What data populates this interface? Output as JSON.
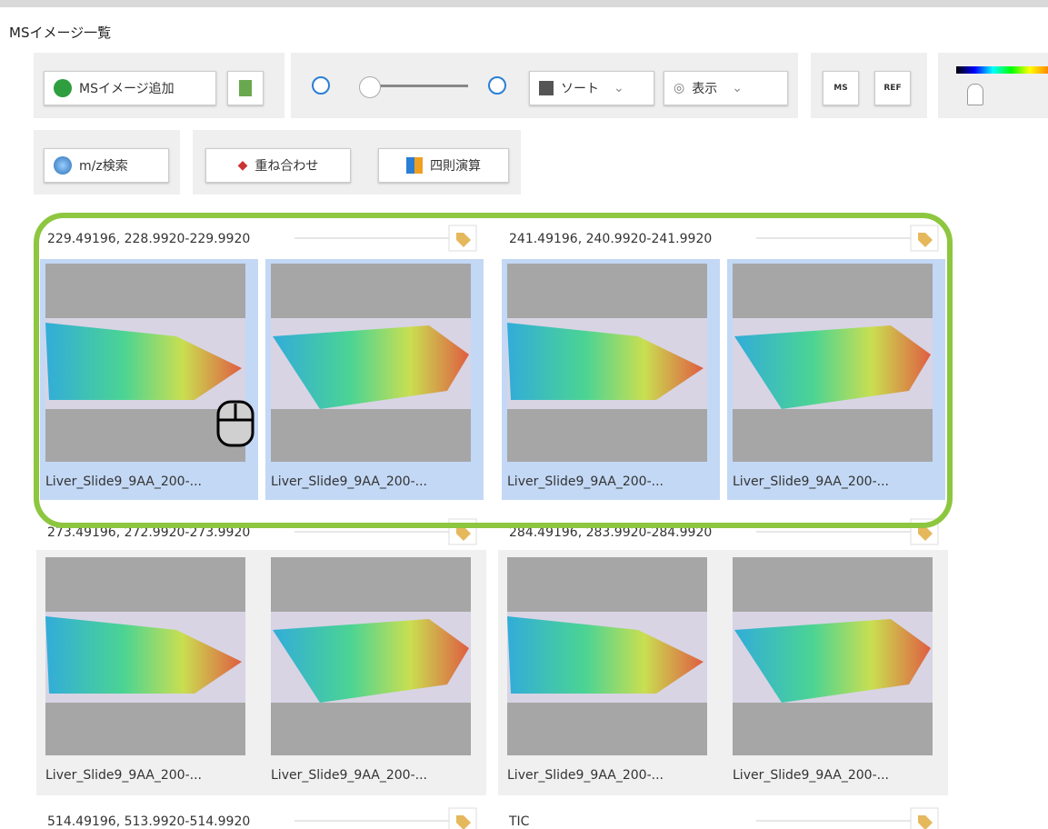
{
  "header": {
    "title": "MSイメージ一覧"
  },
  "toolbar": {
    "add": "MSイメージ追加",
    "sort": "ソート",
    "view": "表示",
    "ms": "MS",
    "ref": "REF",
    "mz_search": "m/z検索",
    "overlay": "重ね合わせ",
    "arithmetic": "四則演算"
  },
  "groups": [
    {
      "label": "229.49196, 228.9920-229.9920",
      "images": [
        "Liver_Slide9_9AA_200-...",
        "Liver_Slide9_9AA_200-..."
      ]
    },
    {
      "label": "241.49196, 240.9920-241.9920",
      "images": [
        "Liver_Slide9_9AA_200-...",
        "Liver_Slide9_9AA_200-..."
      ]
    },
    {
      "label": "273.49196, 272.9920-273.9920",
      "images": [
        "Liver_Slide9_9AA_200-...",
        "Liver_Slide9_9AA_200-..."
      ]
    },
    {
      "label": "284.49196, 283.9920-284.9920",
      "images": [
        "Liver_Slide9_9AA_200-...",
        "Liver_Slide9_9AA_200-..."
      ]
    },
    {
      "label": "514.49196, 513.9920-514.9920",
      "images": []
    },
    {
      "label": "TIC",
      "images": []
    }
  ]
}
